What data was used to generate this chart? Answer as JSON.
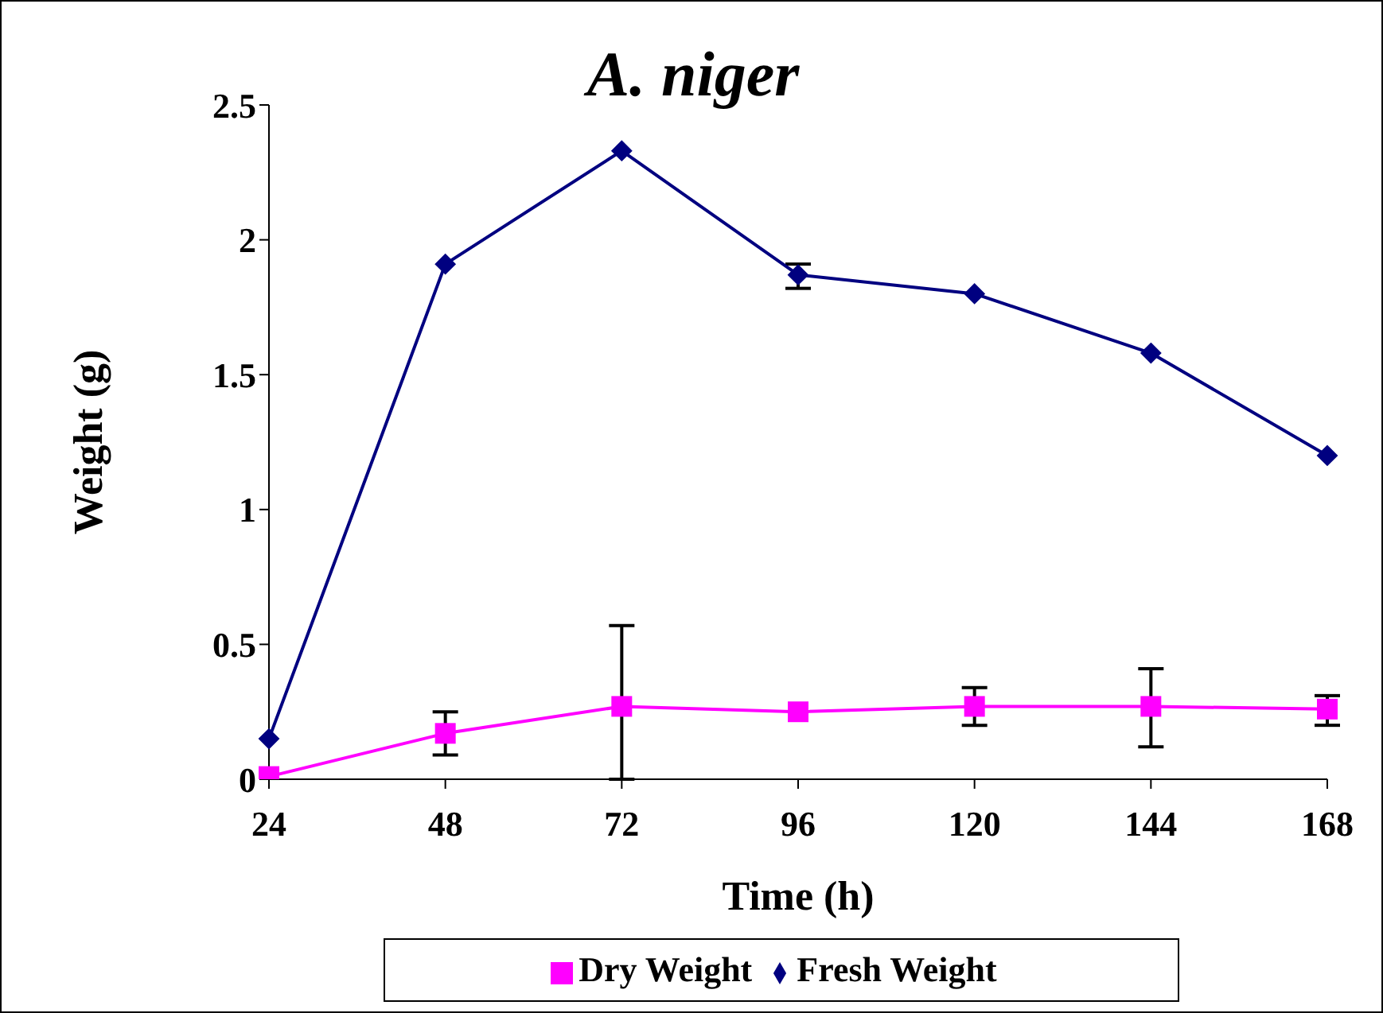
{
  "chart_data": {
    "type": "line",
    "title": "A. niger",
    "xlabel": "Time (h)",
    "ylabel": "Weight (g)",
    "categories": [
      "24",
      "48",
      "72",
      "96",
      "120",
      "144",
      "168"
    ],
    "series": [
      {
        "name": "Fresh Weight",
        "color": "#000080",
        "marker": "diamond",
        "values": [
          0.15,
          1.91,
          2.33,
          1.87,
          1.8,
          1.58,
          1.2
        ],
        "errors": [
          null,
          null,
          null,
          [
            1.82,
            1.91
          ],
          null,
          null,
          null
        ]
      },
      {
        "name": "Dry Weight",
        "color": "#ff00ff",
        "marker": "square",
        "values": [
          0.01,
          0.17,
          0.27,
          0.25,
          0.27,
          0.27,
          0.26
        ],
        "errors": [
          null,
          [
            0.09,
            0.25
          ],
          [
            0,
            0.57
          ],
          null,
          [
            0.2,
            0.34
          ],
          [
            0.12,
            0.41
          ],
          [
            0.2,
            0.31
          ]
        ]
      }
    ],
    "ylim": [
      0,
      2.5
    ],
    "yticks": [
      0,
      0.5,
      1,
      1.5,
      2,
      2.5
    ],
    "grid": false,
    "legend": "bottom"
  }
}
